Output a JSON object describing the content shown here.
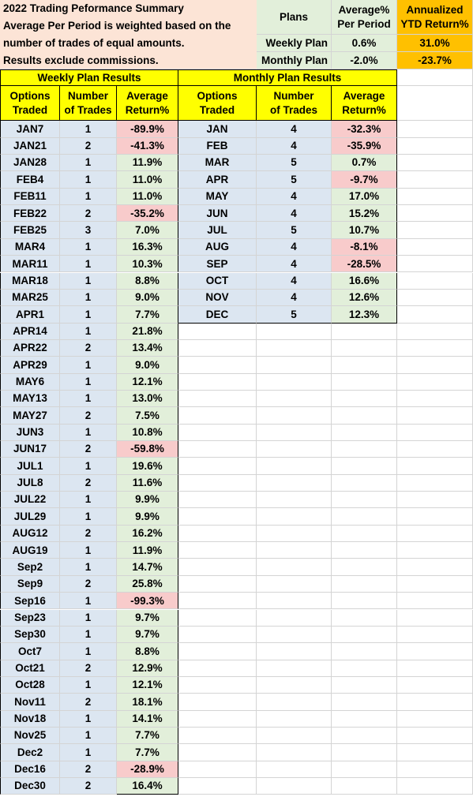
{
  "summary": {
    "lines": [
      "2022 Trading Peformance Summary",
      "Average Per Period is weighted based on the",
      "number of trades of equal amounts.",
      "Results exclude commissions."
    ]
  },
  "plans_table": {
    "headers": {
      "plans": "Plans",
      "avg_line1": "Average%",
      "avg_line2": "Per Period",
      "ytd_line1": "Annualized",
      "ytd_line2": "YTD Return%"
    },
    "rows": [
      {
        "plan": "Weekly Plan",
        "avg": "0.6%",
        "ytd": "31.0%"
      },
      {
        "plan": "Monthly Plan",
        "avg": "-2.0%",
        "ytd": "-23.7%"
      }
    ]
  },
  "weekly": {
    "title": "Weekly Plan Results",
    "headers": [
      {
        "line1": "Options",
        "line2": "Traded"
      },
      {
        "line1": "Number",
        "line2": "of Trades"
      },
      {
        "line1": "Average",
        "line2": "Return%"
      }
    ],
    "rows": [
      [
        "JAN7",
        "1",
        "-89.9%"
      ],
      [
        "JAN21",
        "2",
        "-41.3%"
      ],
      [
        "JAN28",
        "1",
        "11.9%"
      ],
      [
        "FEB4",
        "1",
        "11.0%"
      ],
      [
        "FEB11",
        "1",
        "11.0%"
      ],
      [
        "FEB22",
        "2",
        "-35.2%"
      ],
      [
        "FEB25",
        "3",
        "7.0%"
      ],
      [
        "MAR4",
        "1",
        "16.3%"
      ],
      [
        "MAR11",
        "1",
        "10.3%"
      ],
      [
        "MAR18",
        "1",
        "8.8%"
      ],
      [
        "MAR25",
        "1",
        "9.0%"
      ],
      [
        "APR1",
        "1",
        "7.7%"
      ],
      [
        "APR14",
        "1",
        "21.8%"
      ],
      [
        "APR22",
        "2",
        "13.4%"
      ],
      [
        "APR29",
        "1",
        "9.0%"
      ],
      [
        "MAY6",
        "1",
        "12.1%"
      ],
      [
        "MAY13",
        "1",
        "13.0%"
      ],
      [
        "MAY27",
        "2",
        "7.5%"
      ],
      [
        "JUN3",
        "1",
        "10.8%"
      ],
      [
        "JUN17",
        "2",
        "-59.8%"
      ],
      [
        "JUL1",
        "1",
        "19.6%"
      ],
      [
        "JUL8",
        "2",
        "11.6%"
      ],
      [
        "JUL22",
        "1",
        "9.9%"
      ],
      [
        "JUL29",
        "1",
        "9.9%"
      ],
      [
        "AUG12",
        "2",
        "16.2%"
      ],
      [
        "AUG19",
        "1",
        "11.9%"
      ],
      [
        "Sep2",
        "1",
        "14.7%"
      ],
      [
        "Sep9",
        "2",
        "25.8%"
      ],
      [
        "Sep16",
        "1",
        "-99.3%"
      ],
      [
        "Sep23",
        "1",
        "9.7%"
      ],
      [
        "Sep30",
        "1",
        "9.7%"
      ],
      [
        "Oct7",
        "1",
        "8.8%"
      ],
      [
        "Oct21",
        "2",
        "12.9%"
      ],
      [
        "Oct28",
        "1",
        "12.1%"
      ],
      [
        "Nov11",
        "2",
        "18.1%"
      ],
      [
        "Nov18",
        "1",
        "14.1%"
      ],
      [
        "Nov25",
        "1",
        "7.7%"
      ],
      [
        "Dec2",
        "1",
        "7.7%"
      ],
      [
        "Dec16",
        "2",
        "-28.9%"
      ],
      [
        "Dec30",
        "2",
        "16.4%"
      ]
    ]
  },
  "monthly": {
    "title": "Monthly Plan Results",
    "headers": [
      {
        "line1": "Options",
        "line2": "Traded"
      },
      {
        "line1": "Number",
        "line2": "of Trades"
      },
      {
        "line1": "Average",
        "line2": "Return%"
      }
    ],
    "rows": [
      [
        "JAN",
        "4",
        "-32.3%"
      ],
      [
        "FEB",
        "4",
        "-35.9%"
      ],
      [
        "MAR",
        "5",
        "0.7%"
      ],
      [
        "APR",
        "5",
        "-9.7%"
      ],
      [
        "MAY",
        "4",
        "17.0%"
      ],
      [
        "JUN",
        "4",
        "15.2%"
      ],
      [
        "JUL",
        "5",
        "10.7%"
      ],
      [
        "AUG",
        "4",
        "-8.1%"
      ],
      [
        "SEP",
        "4",
        "-28.5%"
      ],
      [
        "OCT",
        "4",
        "16.6%"
      ],
      [
        "NOV",
        "4",
        "12.6%"
      ],
      [
        "DEC",
        "5",
        "12.3%"
      ]
    ]
  },
  "colors": {
    "summary_bg": "#fce4d6",
    "plans_bg": "#e2efda",
    "ytd_bg": "#ffc000",
    "header_bg": "#ffff00",
    "label_bg": "#dce6f1",
    "positive_bg": "#e2efda",
    "negative_bg": "#f8cbcb"
  }
}
